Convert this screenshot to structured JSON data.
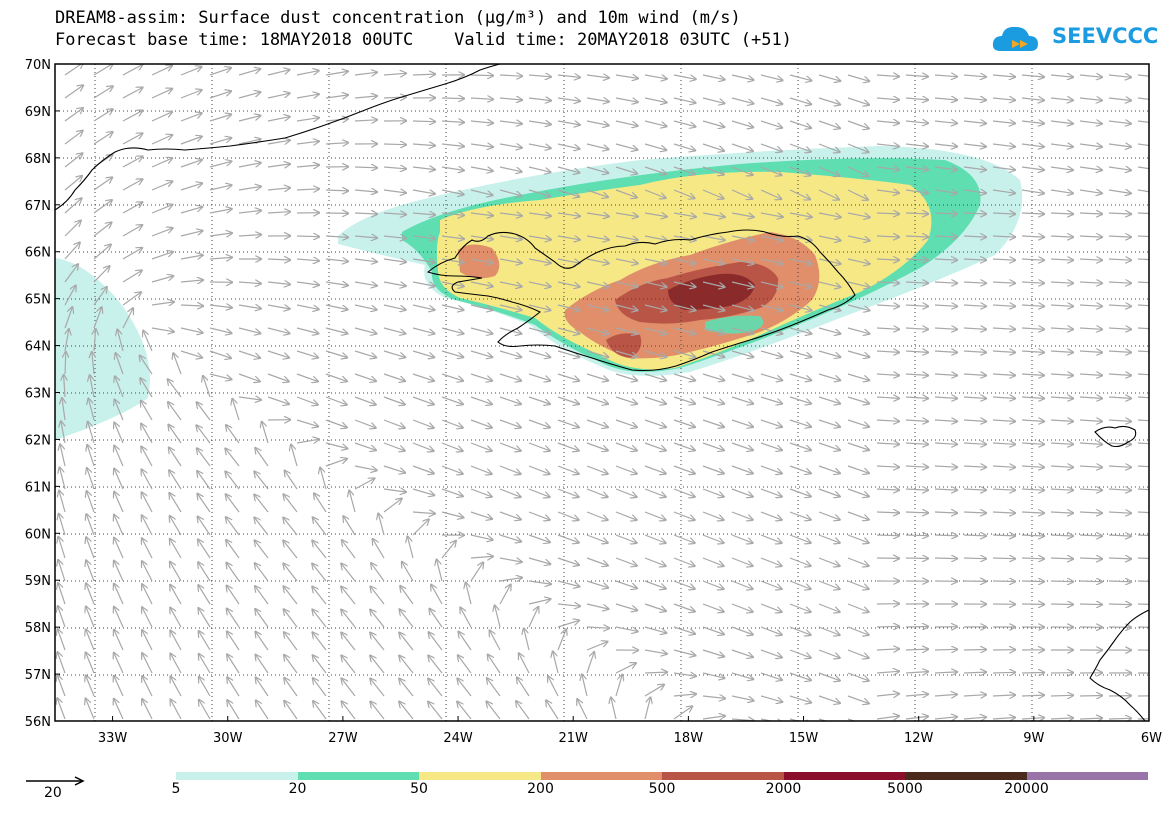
{
  "header": {
    "title": "DREAM8-assim: Surface dust concentration (µg/m³) and 10m wind (m/s)",
    "subtitle": "Forecast base time: 18MAY2018 00UTC    Valid time: 20MAY2018 03UTC (+51)"
  },
  "logo": {
    "text": "SEEVCCC",
    "icon": "cloud-arrow-icon",
    "color": "#1b9be0"
  },
  "map": {
    "lat_labels": [
      "70N",
      "69N",
      "68N",
      "67N",
      "66N",
      "65N",
      "64N",
      "63N",
      "62N",
      "61N",
      "60N",
      "59N",
      "58N",
      "57N",
      "56N"
    ],
    "lon_labels": [
      "33W",
      "30W",
      "27W",
      "24W",
      "21W",
      "18W",
      "15W",
      "12W",
      "9W",
      "6W"
    ],
    "extent": {
      "lon_min": -34.5,
      "lon_max": -6,
      "lat_min": 56,
      "lat_max": 70
    },
    "grid": "dotted",
    "vector_color": "#a8a8a8",
    "coast_color": "#000000"
  },
  "legend": {
    "wind_reference": "20",
    "thresholds": [
      "5",
      "20",
      "50",
      "200",
      "500",
      "2000",
      "5000",
      "20000"
    ],
    "colors": [
      "#c8f1ec",
      "#5fdeb2",
      "#f6e985",
      "#e08f6a",
      "#b95547",
      "#8a0f2a",
      "#4a2a1a",
      "#9874a8"
    ]
  }
}
